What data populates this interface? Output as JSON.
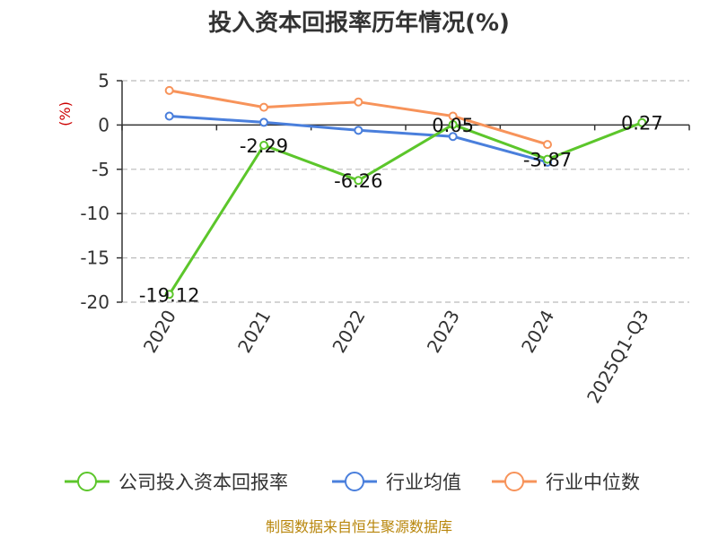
{
  "chart_data": {
    "type": "line",
    "title": "投入资本回报率历年情况(%)",
    "ylabel": "(%)",
    "categories": [
      "2020",
      "2021",
      "2022",
      "2023",
      "2024",
      "2025Q1-Q3"
    ],
    "ylim": [
      -20,
      5
    ],
    "yticks": [
      5,
      0,
      -5,
      -10,
      -15,
      -20
    ],
    "grid": true,
    "legend_position": "bottom",
    "series": [
      {
        "name": "公司投入资本回报率",
        "color": "#5cc62b",
        "values": [
          -19.12,
          -2.29,
          -6.26,
          0.05,
          -3.87,
          0.27
        ],
        "labels": [
          "-19.12",
          "-2.29",
          "-6.26",
          "0.05",
          "-3.87",
          "0.27"
        ]
      },
      {
        "name": "行业均值",
        "color": "#4a7fdc",
        "values": [
          1.0,
          0.3,
          -0.6,
          -1.3,
          -4.2,
          null
        ]
      },
      {
        "name": "行业中位数",
        "color": "#f7935a",
        "values": [
          3.9,
          2.0,
          2.6,
          1.0,
          -2.2,
          null
        ]
      }
    ]
  },
  "source": "制图数据来自恒生聚源数据库"
}
